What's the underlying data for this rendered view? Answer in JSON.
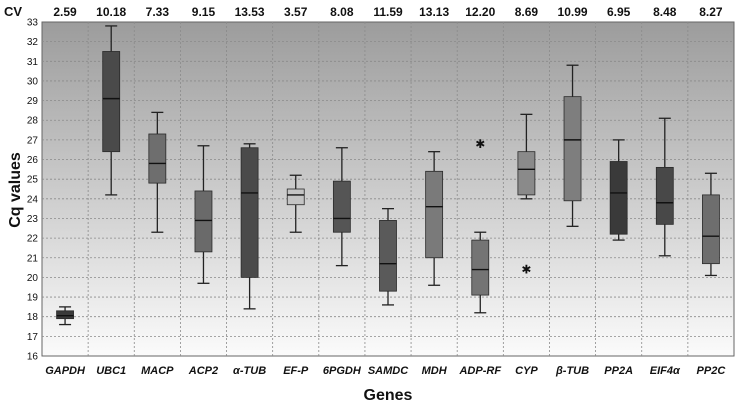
{
  "chart_data": {
    "type": "box",
    "title": "",
    "xlabel": "Genes",
    "ylabel": "Cq values",
    "ylim": [
      16,
      33
    ],
    "yticks": [
      16,
      17,
      18,
      19,
      20,
      21,
      22,
      23,
      24,
      25,
      26,
      27,
      28,
      29,
      30,
      31,
      32,
      33
    ],
    "cv_label": "CV",
    "grid": true,
    "genes": [
      {
        "name": "GAPDH",
        "cv": "2.59",
        "min": 17.6,
        "q1": 17.9,
        "median": 18.05,
        "q3": 18.3,
        "max": 18.5,
        "outliers": [],
        "color": "#3a3a3a"
      },
      {
        "name": "UBC1",
        "cv": "10.18",
        "min": 24.2,
        "q1": 26.4,
        "median": 29.1,
        "q3": 31.5,
        "max": 32.8,
        "outliers": [],
        "color": "#4a4a4a"
      },
      {
        "name": "MACP",
        "cv": "7.33",
        "min": 22.3,
        "q1": 24.8,
        "median": 25.8,
        "q3": 27.3,
        "max": 28.4,
        "outliers": [],
        "color": "#6e6e6e"
      },
      {
        "name": "ACP2",
        "cv": "9.15",
        "min": 19.7,
        "q1": 21.3,
        "median": 22.9,
        "q3": 24.4,
        "max": 26.7,
        "outliers": [],
        "color": "#6a6a6a"
      },
      {
        "name": "α-TUB",
        "cv": "13.53",
        "min": 18.4,
        "q1": 20.0,
        "median": 24.3,
        "q3": 26.6,
        "max": 26.8,
        "outliers": [],
        "color": "#4a4a4a"
      },
      {
        "name": "EF-P",
        "cv": "3.57",
        "min": 22.3,
        "q1": 23.7,
        "median": 24.2,
        "q3": 24.5,
        "max": 25.2,
        "outliers": [],
        "color": "#c4c4c4"
      },
      {
        "name": "6PGDH",
        "cv": "8.08",
        "min": 20.6,
        "q1": 22.3,
        "median": 23.0,
        "q3": 24.9,
        "max": 26.6,
        "outliers": [],
        "color": "#555555"
      },
      {
        "name": "SAMDC",
        "cv": "11.59",
        "min": 18.6,
        "q1": 19.3,
        "median": 20.7,
        "q3": 22.9,
        "max": 23.5,
        "outliers": [],
        "color": "#5a5a5a"
      },
      {
        "name": "MDH",
        "cv": "13.13",
        "min": 19.6,
        "q1": 21.0,
        "median": 23.6,
        "q3": 25.4,
        "max": 26.4,
        "outliers": [],
        "color": "#7a7a7a"
      },
      {
        "name": "ADP-RF",
        "cv": "12.20",
        "min": 18.2,
        "q1": 19.1,
        "median": 20.4,
        "q3": 21.9,
        "max": 22.3,
        "outliers": [
          26.8
        ],
        "color": "#747474"
      },
      {
        "name": "CYP",
        "cv": "8.69",
        "min": 24.0,
        "q1": 24.2,
        "median": 25.5,
        "q3": 26.4,
        "max": 28.3,
        "outliers": [
          20.4
        ],
        "color": "#8a8a8a"
      },
      {
        "name": "β-TUB",
        "cv": "10.99",
        "min": 22.6,
        "q1": 23.9,
        "median": 27.0,
        "q3": 29.2,
        "max": 30.8,
        "outliers": [],
        "color": "#7e7e7e"
      },
      {
        "name": "PP2A",
        "cv": "6.95",
        "min": 21.9,
        "q1": 22.2,
        "median": 24.3,
        "q3": 25.9,
        "max": 27.0,
        "outliers": [],
        "color": "#3a3a3a"
      },
      {
        "name": "EIF4α",
        "cv": "8.48",
        "min": 21.1,
        "q1": 22.7,
        "median": 23.8,
        "q3": 25.6,
        "max": 28.1,
        "outliers": [],
        "color": "#484848"
      },
      {
        "name": "PP2C",
        "cv": "8.27",
        "min": 20.1,
        "q1": 20.7,
        "median": 22.1,
        "q3": 24.2,
        "max": 25.3,
        "outliers": [],
        "color": "#6e6e6e"
      }
    ]
  }
}
